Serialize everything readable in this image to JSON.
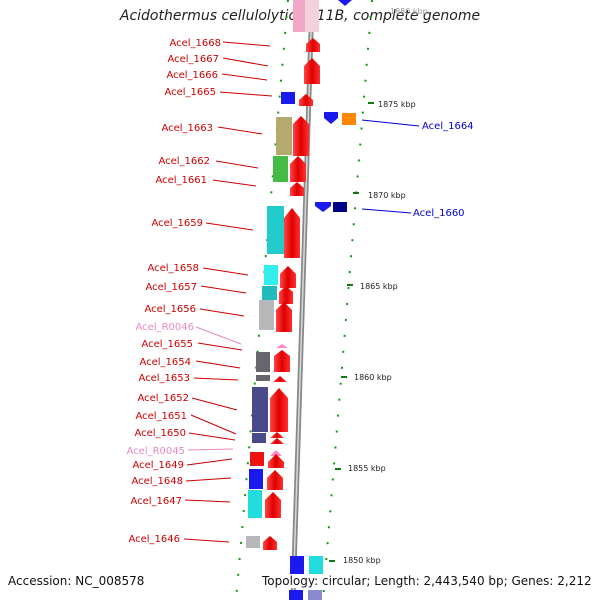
{
  "title": "Acidothermus cellulolyticus 11B, complete genome",
  "footer": {
    "accession": "Accession: NC_008578",
    "summary": "Topology: circular; Length: 2,443,540 bp; Genes: 2,212"
  },
  "scale_labels": [
    "1880 kbp",
    "1875 kbp",
    "1870 kbp",
    "1865 kbp",
    "1860 kbp",
    "1855 kbp",
    "1850 kbp"
  ],
  "left_genes": [
    {
      "label": "Acel_1668",
      "color": "#cc0000"
    },
    {
      "label": "Acel_1667",
      "color": "#cc0000"
    },
    {
      "label": "Acel_1666",
      "color": "#cc0000"
    },
    {
      "label": "Acel_1665",
      "color": "#cc0000"
    },
    {
      "label": "Acel_1663",
      "color": "#cc0000"
    },
    {
      "label": "Acel_1662",
      "color": "#cc0000"
    },
    {
      "label": "Acel_1661",
      "color": "#cc0000"
    },
    {
      "label": "Acel_1659",
      "color": "#cc0000"
    },
    {
      "label": "Acel_1658",
      "color": "#cc0000"
    },
    {
      "label": "Acel_1657",
      "color": "#cc0000"
    },
    {
      "label": "Acel_1656",
      "color": "#cc0000"
    },
    {
      "label": "Acel_R0046",
      "color": "#e888c0"
    },
    {
      "label": "Acel_1655",
      "color": "#cc0000"
    },
    {
      "label": "Acel_1654",
      "color": "#cc0000"
    },
    {
      "label": "Acel_1653",
      "color": "#cc0000"
    },
    {
      "label": "Acel_1652",
      "color": "#cc0000"
    },
    {
      "label": "Acel_1651",
      "color": "#cc0000"
    },
    {
      "label": "Acel_1650",
      "color": "#cc0000"
    },
    {
      "label": "Acel_R0045",
      "color": "#e888c0"
    },
    {
      "label": "Acel_1649",
      "color": "#cc0000"
    },
    {
      "label": "Acel_1648",
      "color": "#cc0000"
    },
    {
      "label": "Acel_1647",
      "color": "#cc0000"
    },
    {
      "label": "Acel_1646",
      "color": "#cc0000"
    }
  ],
  "right_genes": [
    {
      "label": "Acel_1664",
      "color": "#0000cc"
    },
    {
      "label": "Acel_1660",
      "color": "#0000cc"
    }
  ]
}
